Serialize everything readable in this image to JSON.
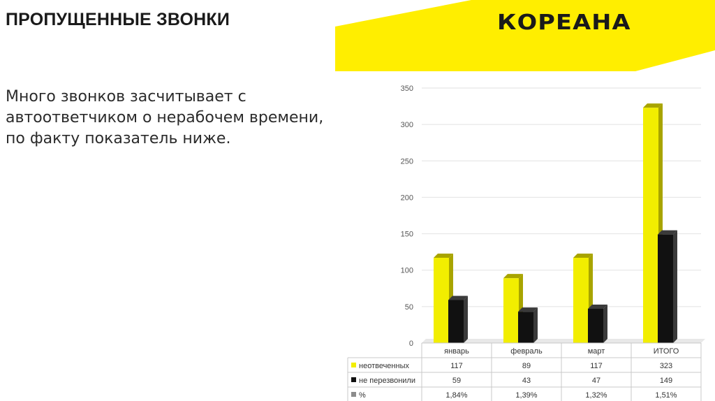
{
  "slide": {
    "title": "ПРОПУЩЕННЫЕ ЗВОНКИ",
    "logo": "КОРЕАНА",
    "body_text": "Много звонков засчитывает с автоответчиком о нерабочем времени, по факту показатель ниже."
  },
  "colors": {
    "accent_yellow": "#ffee00",
    "bar_yellow": "#f2ee00",
    "bar_yellow_side": "#a8a400",
    "bar_black": "#111111",
    "bar_black_side": "#3a3a3a",
    "percent_gray": "#8c8c8c"
  },
  "chart_data": {
    "type": "bar",
    "categories": [
      "январь",
      "февраль",
      "март",
      "ИТОГО"
    ],
    "series": [
      {
        "name": "неотвеченных",
        "values": [
          117,
          89,
          117,
          323
        ],
        "labels": [
          "117",
          "89",
          "117",
          "323"
        ],
        "color": "#f2ee00"
      },
      {
        "name": "не перезвонили",
        "values": [
          59,
          43,
          47,
          149
        ],
        "labels": [
          "59",
          "43",
          "47",
          "149"
        ],
        "color": "#111111"
      },
      {
        "name": "%",
        "values": [
          1.84,
          1.39,
          1.32,
          1.51
        ],
        "labels": [
          "1,84%",
          "1,39%",
          "1,32%",
          "1,51%"
        ],
        "color": "#8c8c8c"
      }
    ],
    "yticks": [
      "0",
      "50",
      "100",
      "150",
      "200",
      "250",
      "300",
      "350"
    ],
    "ylim": [
      0,
      350
    ],
    "grid": true,
    "legend": "data table below chart",
    "bar_style": "3d"
  }
}
